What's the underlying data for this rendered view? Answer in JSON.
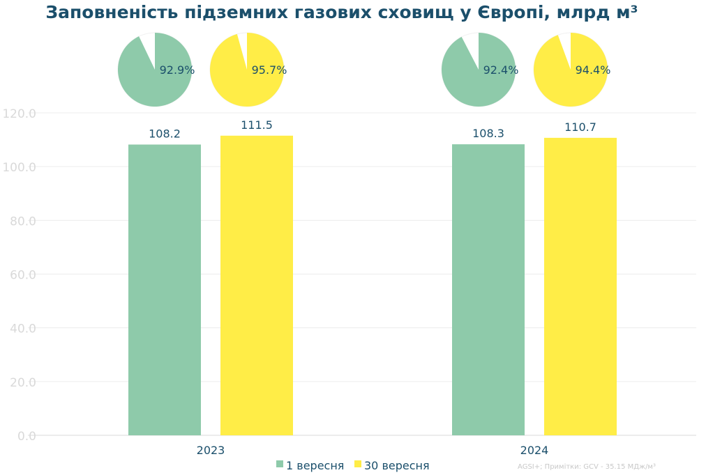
{
  "chart_data": {
    "type": "bar",
    "title": "Заповненість підземних газових сховищ у Європі, млрд м³",
    "categories": [
      "2023",
      "2024"
    ],
    "series": [
      {
        "name": "1 вересня",
        "values": [
          108.2,
          108.3
        ],
        "fill_pct": [
          92.9,
          92.4
        ]
      },
      {
        "name": "30 вересня",
        "values": [
          111.5,
          110.7
        ],
        "fill_pct": [
          95.7,
          94.4
        ]
      }
    ],
    "data_labels": [
      [
        "108.2",
        "108.3"
      ],
      [
        "111.5",
        "110.7"
      ]
    ],
    "pie_labels": [
      [
        "92.9%",
        "92.4%"
      ],
      [
        "95.7%",
        "94.4%"
      ]
    ],
    "y_ticks": [
      "0.0",
      "20.0",
      "40.0",
      "60.0",
      "80.0",
      "100.0",
      "120.0"
    ],
    "y_tick_values": [
      0,
      20,
      40,
      60,
      80,
      100,
      120
    ],
    "ylim": [
      0,
      120
    ],
    "grid": true,
    "legend_position": "bottom",
    "source_note": "AGSI+; Примітки: GCV - 35.15 МДж/м³"
  },
  "colors": {
    "title": "#1b4f6b",
    "label": "#1b4f6b",
    "tick": "#d9d9d9",
    "grid": "#ececec",
    "axis": "#d9d9d9",
    "series": [
      "#8ecaaa",
      "#ffed47"
    ],
    "pie_rest": "#ffffff",
    "pie_edge": "#f0f0f0",
    "note": "#c8c8c8"
  }
}
